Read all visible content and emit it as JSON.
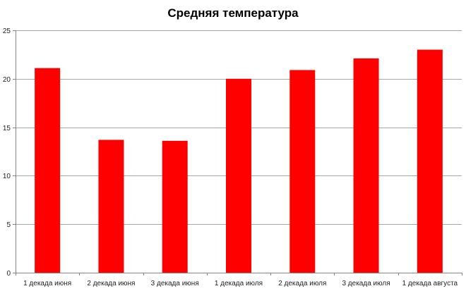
{
  "chart_data": {
    "type": "bar",
    "title": "Средняя температура",
    "xlabel": "",
    "ylabel": "",
    "categories": [
      "1 декада июня",
      "2 декада июня",
      "3 декада июня",
      "1 декада июля",
      "2 декада июля",
      "3 декада июля",
      "1 декада августа"
    ],
    "values": [
      21.1,
      13.7,
      13.6,
      20.0,
      20.9,
      22.1,
      23.0
    ],
    "ylim": [
      0,
      25
    ],
    "yticks": [
      0,
      5,
      10,
      15,
      20,
      25
    ],
    "grid": true,
    "legend": "none",
    "bar_color": "#FF0000",
    "grid_color": "#A6A6A6"
  }
}
